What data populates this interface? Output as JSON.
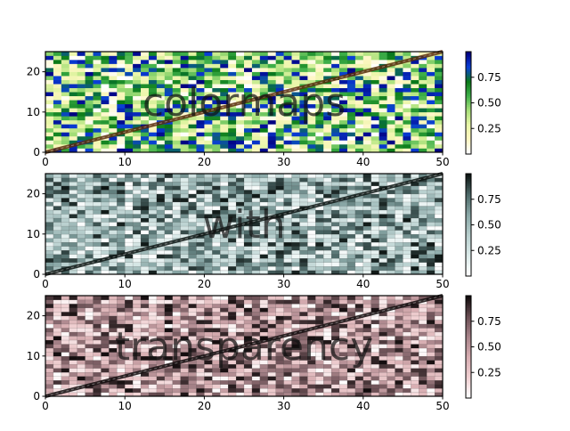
{
  "chart_data": [
    {
      "type": "heatmap",
      "overlay_text": "colormaps",
      "colormap": "gist_ncar_r (transparent low end)",
      "colormap_stops": [
        "#ffffff",
        "#fff6c2",
        "#e9f6a8",
        "#a8e07a",
        "#3fb04a",
        "#0a7a18",
        "#0a3fd8",
        "#000080"
      ],
      "grid": {
        "columns": 50,
        "rows": 25,
        "values_range": [
          0,
          1
        ],
        "pattern": "random uniform",
        "seed": 7
      },
      "line": {
        "x": [
          0,
          50
        ],
        "y": [
          0,
          25
        ],
        "color": "#5a2d0c"
      },
      "xlim": [
        0,
        50
      ],
      "ylim": [
        0,
        25
      ],
      "xticks": [
        "0",
        "10",
        "20",
        "30",
        "40",
        "50"
      ],
      "yticks": [
        "0",
        "10",
        "20"
      ],
      "colorbar": {
        "range": [
          0,
          1
        ],
        "ticks": [
          "0.25",
          "0.50",
          "0.75"
        ]
      },
      "xlabel": "",
      "ylabel": ""
    },
    {
      "type": "heatmap",
      "overlay_text": "with",
      "colormap": "bone_r (alpha-blended teal/gray)",
      "colormap_stops": [
        "#ffffff",
        "#dcebea",
        "#b8cfce",
        "#8aa8a7",
        "#4e6a69",
        "#0d1513"
      ],
      "grid": {
        "columns": 50,
        "rows": 25,
        "values_range": [
          0,
          1
        ],
        "pattern": "random uniform",
        "seed": 19
      },
      "line": {
        "x": [
          0,
          50
        ],
        "y": [
          0,
          25
        ],
        "color": "#0d1513"
      },
      "xlim": [
        0,
        50
      ],
      "ylim": [
        0,
        25
      ],
      "xticks": [
        "0",
        "10",
        "20",
        "30",
        "40",
        "50"
      ],
      "yticks": [
        "0",
        "10",
        "20"
      ],
      "colorbar": {
        "range": [
          0,
          1
        ],
        "ticks": [
          "0.25",
          "0.50",
          "0.75"
        ]
      },
      "xlabel": "",
      "ylabel": ""
    },
    {
      "type": "heatmap",
      "overlay_text": "transparency",
      "colormap": "pink_r (alpha-blended mauve)",
      "colormap_stops": [
        "#ffffff",
        "#f0d0d2",
        "#d8aeb2",
        "#a8848a",
        "#6a4f54",
        "#110b0c"
      ],
      "grid": {
        "columns": 50,
        "rows": 25,
        "values_range": [
          0,
          1
        ],
        "pattern": "random uniform",
        "seed": 43
      },
      "line": {
        "x": [
          0,
          50
        ],
        "y": [
          0,
          25
        ],
        "color": "#110b0c"
      },
      "xlim": [
        0,
        50
      ],
      "ylim": [
        0,
        25
      ],
      "xticks": [
        "0",
        "10",
        "20",
        "30",
        "40",
        "50"
      ],
      "yticks": [
        "0",
        "10",
        "20"
      ],
      "colorbar": {
        "range": [
          0,
          1
        ],
        "ticks": [
          "0.25",
          "0.50",
          "0.75"
        ]
      },
      "xlabel": "",
      "ylabel": ""
    }
  ]
}
